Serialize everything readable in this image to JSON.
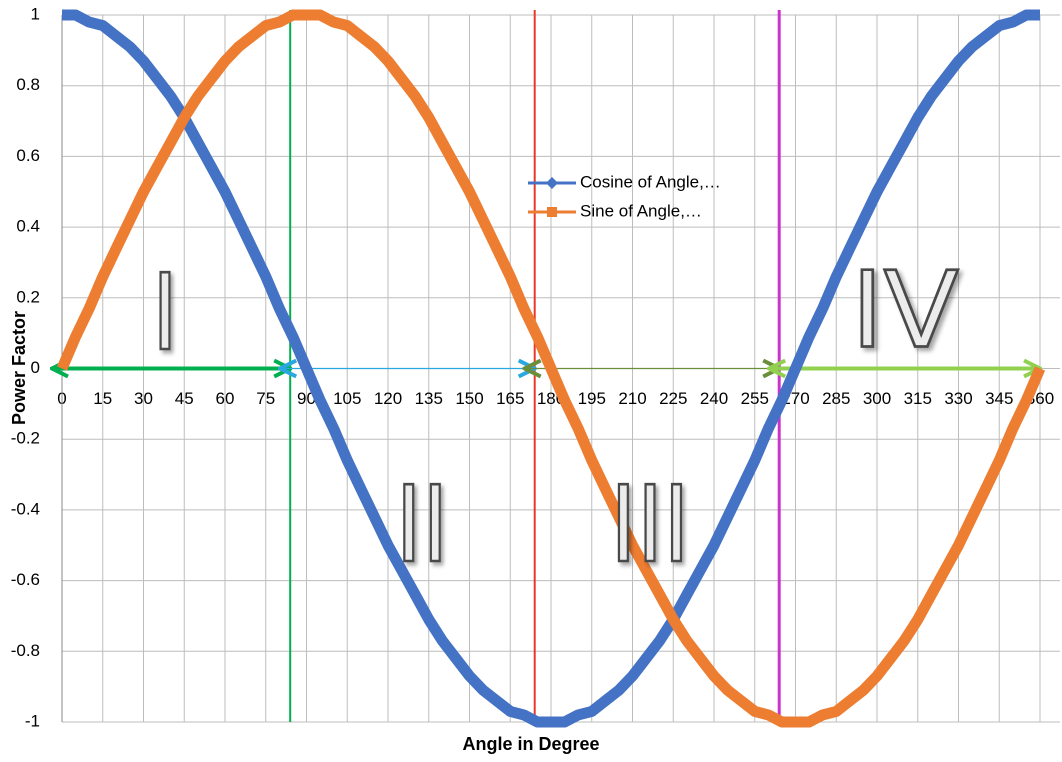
{
  "chart_data": {
    "type": "line",
    "x_label": "Angle in Degree",
    "y_label": "Power Factor",
    "x": [
      0,
      5,
      10,
      15,
      20,
      25,
      30,
      35,
      40,
      45,
      50,
      55,
      60,
      65,
      70,
      75,
      80,
      85,
      90,
      95,
      100,
      105,
      110,
      115,
      120,
      125,
      130,
      135,
      140,
      145,
      150,
      155,
      160,
      165,
      170,
      175,
      180,
      185,
      190,
      195,
      200,
      205,
      210,
      215,
      220,
      225,
      230,
      235,
      240,
      245,
      250,
      255,
      260,
      265,
      270,
      275,
      280,
      285,
      290,
      295,
      300,
      305,
      310,
      315,
      320,
      325,
      330,
      335,
      340,
      345,
      350,
      355,
      360
    ],
    "series": [
      {
        "name": "Cosine of Angle,…",
        "color": "#4472c4",
        "marker": "diamond",
        "values": [
          1,
          1,
          0.98,
          0.97,
          0.94,
          0.91,
          0.87,
          0.82,
          0.77,
          0.71,
          0.64,
          0.57,
          0.5,
          0.42,
          0.34,
          0.26,
          0.17,
          0.09,
          0,
          -0.09,
          -0.17,
          -0.26,
          -0.34,
          -0.42,
          -0.5,
          -0.57,
          -0.64,
          -0.71,
          -0.77,
          -0.82,
          -0.87,
          -0.91,
          -0.94,
          -0.97,
          -0.98,
          -1,
          -1,
          -1,
          -0.98,
          -0.97,
          -0.94,
          -0.91,
          -0.87,
          -0.82,
          -0.77,
          -0.71,
          -0.64,
          -0.57,
          -0.5,
          -0.42,
          -0.34,
          -0.26,
          -0.17,
          -0.09,
          0,
          0.09,
          0.17,
          0.26,
          0.34,
          0.42,
          0.5,
          0.57,
          0.64,
          0.71,
          0.77,
          0.82,
          0.87,
          0.91,
          0.94,
          0.97,
          0.98,
          1,
          1
        ]
      },
      {
        "name": "Sine of Angle,…",
        "color": "#ed7d31",
        "marker": "square",
        "values": [
          0,
          0.09,
          0.17,
          0.26,
          0.34,
          0.42,
          0.5,
          0.57,
          0.64,
          0.71,
          0.77,
          0.82,
          0.87,
          0.91,
          0.94,
          0.97,
          0.98,
          1,
          1,
          1,
          0.98,
          0.97,
          0.94,
          0.91,
          0.87,
          0.82,
          0.77,
          0.71,
          0.64,
          0.57,
          0.5,
          0.42,
          0.34,
          0.26,
          0.17,
          0.09,
          0,
          -0.09,
          -0.17,
          -0.26,
          -0.34,
          -0.42,
          -0.5,
          -0.57,
          -0.64,
          -0.71,
          -0.77,
          -0.82,
          -0.87,
          -0.91,
          -0.94,
          -0.97,
          -0.98,
          -1,
          -1,
          -1,
          -0.98,
          -0.97,
          -0.94,
          -0.91,
          -0.87,
          -0.82,
          -0.77,
          -0.71,
          -0.64,
          -0.57,
          -0.5,
          -0.42,
          -0.34,
          -0.26,
          -0.17,
          -0.09,
          0
        ]
      }
    ],
    "xlim": [
      0,
      360
    ],
    "xticks": [
      0,
      15,
      30,
      45,
      60,
      75,
      90,
      105,
      120,
      135,
      150,
      165,
      180,
      195,
      210,
      225,
      240,
      255,
      270,
      285,
      300,
      315,
      330,
      345,
      360
    ],
    "ylim": [
      -1,
      1
    ],
    "yticks": [
      -1,
      -0.8,
      -0.6,
      -0.4,
      -0.2,
      0,
      0.2,
      0.4,
      0.6,
      0.8,
      1
    ],
    "grid": true,
    "reference_lines": {
      "x": [
        84,
        174,
        264
      ],
      "colors": [
        "#00b050",
        "#e8382a",
        "#cc33cc"
      ]
    },
    "annotations": {
      "labels": [
        "I",
        "II",
        "III",
        "IV"
      ],
      "arrow_colors": [
        "#00b050",
        "#2aa7e0",
        "#6b8e3a",
        "#92d050"
      ]
    }
  }
}
